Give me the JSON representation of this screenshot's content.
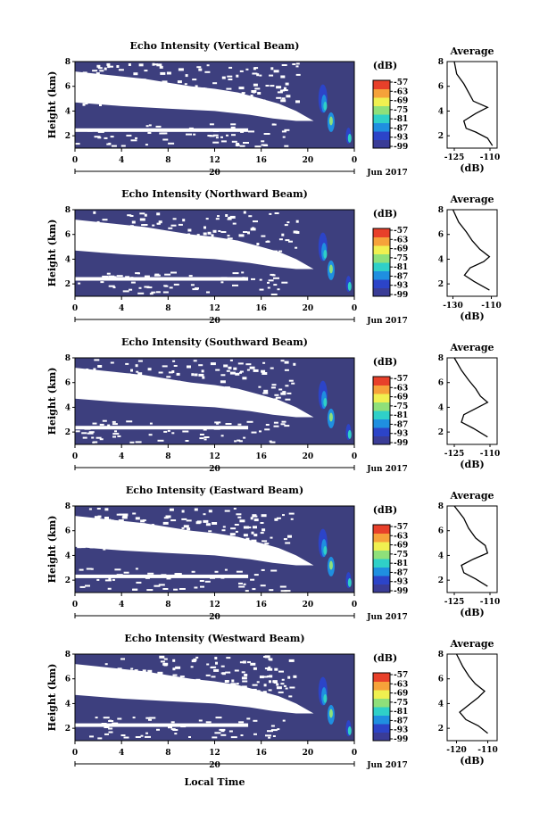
{
  "figure": {
    "xlabel": "Local Time",
    "time_ticks": [
      "0",
      "4",
      "8",
      "12",
      "16",
      "20",
      "0"
    ],
    "date_tick": "20",
    "date_label": "Jun 2017",
    "colorbar_unit": "(dB)",
    "colorbar_levels": [
      "-57",
      "-63",
      "-69",
      "-75",
      "-81",
      "-87",
      "-93",
      "-99"
    ],
    "avg_title": "Average",
    "avg_xlabel": "(dB)",
    "ylabel": "Height (km)",
    "height_ticks": [
      "8",
      "6",
      "4",
      "2"
    ],
    "colors": {
      "background": "#3d3f7e",
      "colormap": [
        "#3a3c96",
        "#2c44c8",
        "#1f8fe0",
        "#2fd0c8",
        "#8fe07a",
        "#f0f050",
        "#f6a23a",
        "#e8402a"
      ]
    }
  },
  "chart_data": [
    {
      "type": "heatmap",
      "title": "Echo Intensity (Vertical Beam)",
      "xlabel": "Local Time",
      "ylabel": "Height (km)",
      "x_range_hours": [
        0,
        24
      ],
      "ylim_km": [
        1,
        8
      ],
      "colorbar_range_db": [
        -99,
        -57
      ],
      "average_profile": {
        "title": "Average",
        "xlabel": "(dB)",
        "xticks": [
          "-125",
          "-110"
        ],
        "xlim": [
          -128,
          -107
        ],
        "points": [
          [
            -125,
            8.0
          ],
          [
            -124,
            7.0
          ],
          [
            -121,
            6.2
          ],
          [
            -119,
            5.5
          ],
          [
            -117,
            4.8
          ],
          [
            -111,
            4.3
          ],
          [
            -116,
            3.8
          ],
          [
            -121,
            3.2
          ],
          [
            -120,
            2.6
          ],
          [
            -116,
            2.3
          ],
          [
            -111,
            1.8
          ],
          [
            -109,
            1.2
          ]
        ]
      }
    },
    {
      "type": "heatmap",
      "title": "Echo Intensity (Northward Beam)",
      "xlabel": "Local Time",
      "ylabel": "Height (km)",
      "x_range_hours": [
        0,
        24
      ],
      "ylim_km": [
        1,
        8
      ],
      "colorbar_range_db": [
        -99,
        -57
      ],
      "average_profile": {
        "title": "Average",
        "xlabel": "(dB)",
        "xticks": [
          "-130",
          "-110"
        ],
        "xlim": [
          -133,
          -107
        ],
        "points": [
          [
            -130,
            8.0
          ],
          [
            -127,
            7.0
          ],
          [
            -123,
            6.2
          ],
          [
            -120,
            5.5
          ],
          [
            -116,
            4.8
          ],
          [
            -111,
            4.2
          ],
          [
            -114,
            3.8
          ],
          [
            -121,
            3.3
          ],
          [
            -124,
            2.7
          ],
          [
            -119,
            2.2
          ],
          [
            -111,
            1.5
          ]
        ]
      }
    },
    {
      "type": "heatmap",
      "title": "Echo Intensity (Southward Beam)",
      "xlabel": "Local Time",
      "ylabel": "Height (km)",
      "x_range_hours": [
        0,
        24
      ],
      "ylim_km": [
        1,
        8
      ],
      "colorbar_range_db": [
        -99,
        -57
      ],
      "average_profile": {
        "title": "Average",
        "xlabel": "(dB)",
        "xticks": [
          "-125",
          "-110"
        ],
        "xlim": [
          -128,
          -107
        ],
        "points": [
          [
            -125,
            8.0
          ],
          [
            -122,
            7.0
          ],
          [
            -119,
            6.2
          ],
          [
            -116,
            5.5
          ],
          [
            -114,
            4.9
          ],
          [
            -111,
            4.4
          ],
          [
            -116,
            3.9
          ],
          [
            -121,
            3.4
          ],
          [
            -122,
            2.8
          ],
          [
            -117,
            2.3
          ],
          [
            -111,
            1.6
          ]
        ]
      }
    },
    {
      "type": "heatmap",
      "title": "Echo Intensity (Eastward Beam)",
      "xlabel": "Local Time",
      "ylabel": "Height (km)",
      "x_range_hours": [
        0,
        24
      ],
      "ylim_km": [
        1,
        8
      ],
      "colorbar_range_db": [
        -99,
        -57
      ],
      "average_profile": {
        "title": "Average",
        "xlabel": "(dB)",
        "xticks": [
          "-125",
          "-110"
        ],
        "xlim": [
          -128,
          -107
        ],
        "points": [
          [
            -125,
            8.0
          ],
          [
            -121,
            7.0
          ],
          [
            -119,
            6.2
          ],
          [
            -116,
            5.4
          ],
          [
            -112,
            4.8
          ],
          [
            -111,
            4.2
          ],
          [
            -117,
            3.7
          ],
          [
            -122,
            3.2
          ],
          [
            -121,
            2.6
          ],
          [
            -116,
            2.1
          ],
          [
            -111,
            1.5
          ]
        ]
      }
    },
    {
      "type": "heatmap",
      "title": "Echo Intensity (Westward Beam)",
      "xlabel": "Local Time",
      "ylabel": "Height (km)",
      "x_range_hours": [
        0,
        24
      ],
      "ylim_km": [
        1,
        8
      ],
      "colorbar_range_db": [
        -99,
        -57
      ],
      "average_profile": {
        "title": "Average",
        "xlabel": "(dB)",
        "xticks": [
          "-120",
          "-110"
        ],
        "xlim": [
          -123,
          -107
        ],
        "points": [
          [
            -120,
            8.0
          ],
          [
            -118,
            7.0
          ],
          [
            -116,
            6.2
          ],
          [
            -114,
            5.6
          ],
          [
            -111,
            5.0
          ],
          [
            -113,
            4.5
          ],
          [
            -116,
            3.9
          ],
          [
            -119,
            3.3
          ],
          [
            -117,
            2.7
          ],
          [
            -113,
            2.2
          ],
          [
            -110,
            1.6
          ]
        ]
      }
    }
  ]
}
